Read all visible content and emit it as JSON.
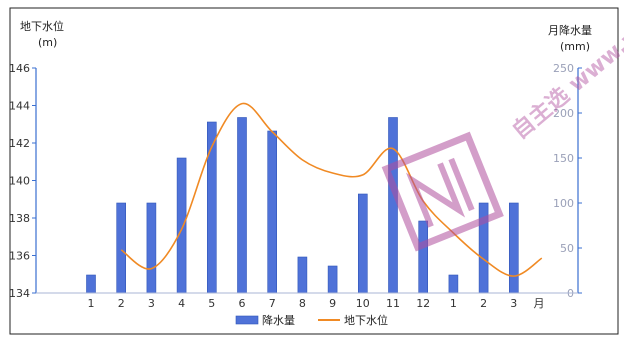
{
  "chart_data": {
    "type": "bar+line",
    "categories": [
      "1",
      "2",
      "3",
      "4",
      "5",
      "6",
      "7",
      "8",
      "9",
      "10",
      "11",
      "12",
      "1",
      "2",
      "3"
    ],
    "x_unit_label": "月",
    "left_axis": {
      "title_line1": "地下水位",
      "title_line2": "(m)",
      "ylim": [
        134,
        146
      ],
      "ticks": [
        134,
        136,
        138,
        140,
        142,
        144,
        146
      ]
    },
    "right_axis": {
      "title_line1": "月降水量",
      "title_line2": "(mm)",
      "ylim": [
        0,
        250
      ],
      "ticks": [
        0,
        50,
        100,
        150,
        200,
        250
      ]
    },
    "series": [
      {
        "name": "降水量",
        "type": "bar",
        "axis": "right",
        "color": "#4f72d8",
        "values": [
          20,
          100,
          100,
          150,
          190,
          195,
          180,
          40,
          30,
          110,
          195,
          80,
          20,
          100,
          100
        ]
      },
      {
        "name": "地下水位",
        "type": "line",
        "axis": "left",
        "color": "#f08a24",
        "values": [
          null,
          136.3,
          135.3,
          137.4,
          141.8,
          144.1,
          142.6,
          141.1,
          140.4,
          140.3,
          141.7,
          138.9,
          137.2,
          135.8,
          134.9
        ]
      }
    ],
    "grid": false,
    "legend": "bottom-center"
  },
  "overlay": {
    "watermark_text": "自主选 www.w"
  }
}
